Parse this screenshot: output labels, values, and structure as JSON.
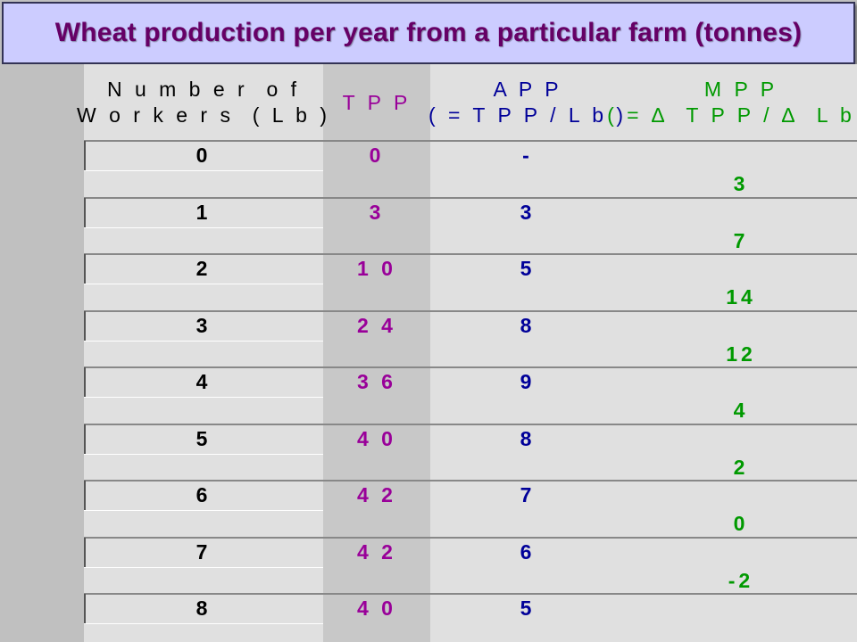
{
  "title": "Wheat production per year from a particular farm (tonnes)",
  "headers": {
    "workers": "N u m b e r  o f\nW o r k e r s  ( L b )",
    "tpp": "T P P",
    "app": "A P P\n( = T P P / L b )",
    "mpp": "M P P\n( = ∆  T P P / ∆  L b )"
  },
  "rows": [
    {
      "workers": "0",
      "tpp": "0",
      "app": "-"
    },
    {
      "workers": "1",
      "tpp": "3",
      "app": "3"
    },
    {
      "workers": "2",
      "tpp": "1 0",
      "app": "5"
    },
    {
      "workers": "3",
      "tpp": "2 4",
      "app": "8"
    },
    {
      "workers": "4",
      "tpp": "3 6",
      "app": "9"
    },
    {
      "workers": "5",
      "tpp": "4 0",
      "app": "8"
    },
    {
      "workers": "6",
      "tpp": "4 2",
      "app": "7"
    },
    {
      "workers": "7",
      "tpp": "4 2",
      "app": "6"
    },
    {
      "workers": "8",
      "tpp": "4 0",
      "app": "5"
    }
  ],
  "mpp": [
    "3",
    "7",
    "14",
    "12",
    "4",
    "2",
    "0",
    "-2"
  ],
  "colors": {
    "title": "#660066",
    "workers": "#000000",
    "tpp": "#990099",
    "app": "#000099",
    "mpp": "#009900"
  }
}
